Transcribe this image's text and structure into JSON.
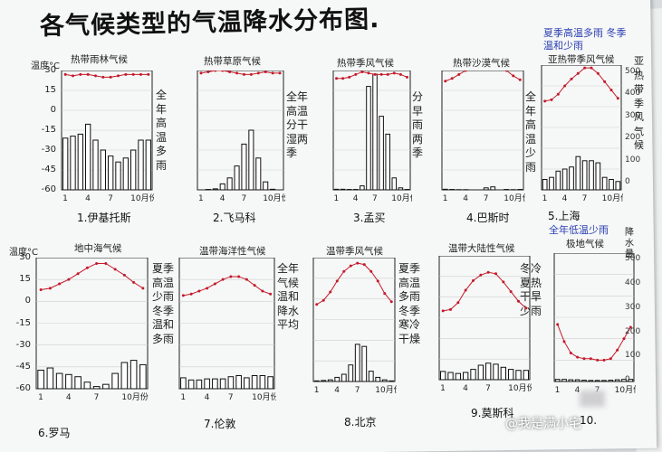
{
  "title": "各气候类型的气温降水分布图.",
  "y_axis": {
    "unit_label": "温度°C",
    "ticks": [
      "30",
      "15",
      "0",
      "-15",
      "-30",
      "-45",
      "-60"
    ]
  },
  "x_ticks": [
    "1",
    "4",
    "7",
    "10月份"
  ],
  "side_notes": {
    "top_right_blue": "夏季高温多雨 冬季温和少雨",
    "right_edge_top": "亚热带季风气候",
    "right_edge_bottom": "降水量",
    "bottom_right_blue": "全年低温少雨"
  },
  "watermark": "@我是满小宅",
  "charts": [
    {
      "title": "热带雨林气候",
      "city": "1.伊基托斯",
      "note": "全年高温多雨",
      "temp": [
        27,
        26,
        27,
        27,
        26,
        25,
        25,
        26,
        27,
        27,
        27,
        27
      ],
      "precip": [
        260,
        270,
        280,
        330,
        250,
        200,
        170,
        140,
        160,
        200,
        250,
        250
      ]
    },
    {
      "title": "热带草原气候",
      "city": "2.飞马科",
      "note": "全年高温 分干湿两季",
      "temp": [
        28,
        29,
        30,
        30,
        29,
        28,
        27,
        27,
        28,
        29,
        28,
        28
      ],
      "precip": [
        0,
        2,
        5,
        30,
        60,
        120,
        230,
        300,
        160,
        40,
        3,
        0
      ]
    },
    {
      "title": "热带季风气候",
      "city": "3.孟买",
      "note": "分早雨两季",
      "temp": [
        24,
        24,
        25,
        27,
        29,
        28,
        27,
        27,
        27,
        28,
        27,
        25
      ],
      "precip": [
        3,
        3,
        2,
        2,
        20,
        520,
        620,
        370,
        280,
        60,
        10,
        2
      ]
    },
    {
      "title": "热带沙漠气候",
      "city": "4.巴斯时",
      "note": "全年高温少雨",
      "temp": [
        22,
        24,
        27,
        30,
        33,
        34,
        34,
        34,
        33,
        30,
        26,
        23
      ],
      "precip": [
        3,
        2,
        1,
        1,
        0,
        0,
        10,
        15,
        0,
        2,
        1,
        2
      ]
    },
    {
      "title": "亚热带季风气候",
      "city": "5.上海",
      "note": "",
      "temp": [
        4,
        5,
        9,
        15,
        20,
        24,
        28,
        28,
        24,
        18,
        12,
        6
      ],
      "precip": [
        50,
        60,
        90,
        100,
        110,
        160,
        140,
        140,
        130,
        60,
        50,
        40
      ]
    },
    {
      "title": "地中海气候",
      "city": "6.罗马",
      "note": "夏季高温少雨 冬季温和多雨",
      "temp": [
        8,
        9,
        12,
        15,
        19,
        23,
        26,
        26,
        22,
        18,
        13,
        9
      ],
      "precip": [
        85,
        95,
        70,
        65,
        55,
        30,
        10,
        20,
        70,
        120,
        130,
        110
      ]
    },
    {
      "title": "温带海洋性气候",
      "city": "7.伦敦",
      "note": "全年气候温和 降水平均",
      "temp": [
        4,
        5,
        7,
        9,
        12,
        15,
        17,
        17,
        15,
        11,
        7,
        5
      ],
      "precip": [
        50,
        40,
        40,
        45,
        45,
        45,
        55,
        60,
        50,
        60,
        60,
        55
      ]
    },
    {
      "title": "温带季风气候",
      "city": "8.北京",
      "note": "夏季高温多雨 冬季寒冷干燥",
      "temp": [
        -4,
        -1,
        5,
        13,
        20,
        24,
        26,
        25,
        20,
        13,
        4,
        -2
      ],
      "precip": [
        3,
        5,
        8,
        20,
        35,
        80,
        180,
        170,
        50,
        20,
        8,
        3
      ]
    },
    {
      "title": "温带大陆性气候",
      "city": "9.莫斯科",
      "note": "冬冷夏热 干旱少雨",
      "temp": [
        -10,
        -9,
        -4,
        5,
        12,
        16,
        18,
        17,
        11,
        4,
        -3,
        -8
      ],
      "precip": [
        40,
        35,
        30,
        35,
        50,
        70,
        80,
        75,
        60,
        50,
        45,
        45
      ]
    },
    {
      "title": "极地气候",
      "city": "10.",
      "note": "",
      "temp": [
        -20,
        -32,
        -40,
        -43,
        -44,
        -44,
        -45,
        -45,
        -44,
        -38,
        -30,
        -22
      ],
      "precip": [
        10,
        10,
        8,
        8,
        6,
        5,
        5,
        5,
        6,
        8,
        10,
        10
      ]
    }
  ],
  "precip_axis": {
    "ticks": [
      "500",
      "400",
      "300",
      "200",
      "100",
      "0"
    ]
  }
}
